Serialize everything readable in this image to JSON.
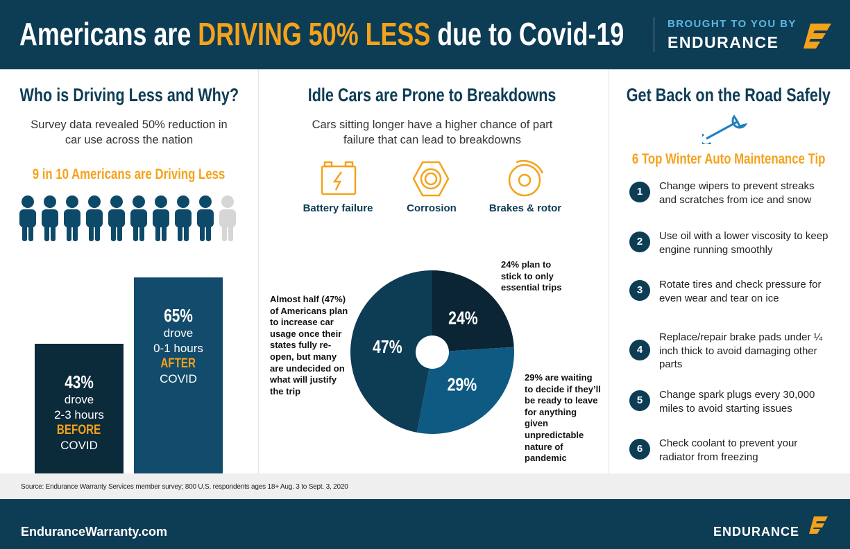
{
  "header": {
    "title_start": "Americans are ",
    "title_highlight": "DRIVING 50% LESS",
    "title_end": " due to Covid-19",
    "brought_by": "BROUGHT TO YOU BY",
    "brand": "ENDURANCE"
  },
  "left": {
    "title": "Who is Driving Less and Why?",
    "subtitle": "Survey data revealed 50% reduction in car use across the nation",
    "highlight": "9 in 10 Americans are Driving Less",
    "bars": [
      {
        "value": 43,
        "value_label": "43%",
        "lines": [
          "drove",
          "2-3 hours"
        ],
        "emphasis": "BEFORE",
        "tail": "COVID",
        "color": "#0b2a3a"
      },
      {
        "value": 65,
        "value_label": "65%",
        "lines": [
          "drove",
          "0-1 hours"
        ],
        "emphasis": "AFTER",
        "tail": "COVID",
        "color": "#124b6b"
      }
    ]
  },
  "middle": {
    "title": "Idle Cars are Prone to Breakdowns",
    "subtitle": "Cars sitting longer have a higher chance of part failure that can lead to breakdowns",
    "icons": [
      "Battery failure",
      "Corrosion",
      "Brakes & rotor"
    ],
    "slices": [
      {
        "value": 24,
        "value_label": "24%",
        "color": "#0b2535"
      },
      {
        "value": 29,
        "value_label": "29%",
        "color": "#0e5a82"
      },
      {
        "value": 47,
        "value_label": "47%",
        "color": "#0d3c55"
      }
    ],
    "notes": [
      "24% plan to stick to only essential trips",
      "29% are waiting to decide if they’ll be ready to leave for anything given unpredictable nature of pandemic",
      "Almost half (47%) of Americans plan to increase car usage once their states fully re-open, but many are undecided on what will justify the trip"
    ]
  },
  "right": {
    "title": "Get Back on the Road Safely",
    "heading": "6 Top Winter Auto Maintenance Tip",
    "tips": [
      {
        "number": "1",
        "text": "Change wipers to prevent streaks and scratches from ice and snow"
      },
      {
        "number": "2",
        "text": "Use oil with a lower viscosity to keep engine running smoothly"
      },
      {
        "number": "3",
        "text": "Rotate tires and check pressure for even wear and tear on ice"
      },
      {
        "number": "4",
        "text": "Replace/repair brake pads under ¼ inch thick to avoid damaging other parts"
      },
      {
        "number": "5",
        "text": "Change spark plugs every 30,000 miles to avoid starting issues"
      },
      {
        "number": "6",
        "text": "Check coolant to prevent your radiator from freezing"
      }
    ]
  },
  "source": "Source: Endurance Warranty Services member survey; 800 U.S. respondents ages 18+ Aug. 3 to Sept. 3, 2020",
  "footer": {
    "url": "EnduranceWarranty.com",
    "brand": "ENDURANCE"
  }
}
